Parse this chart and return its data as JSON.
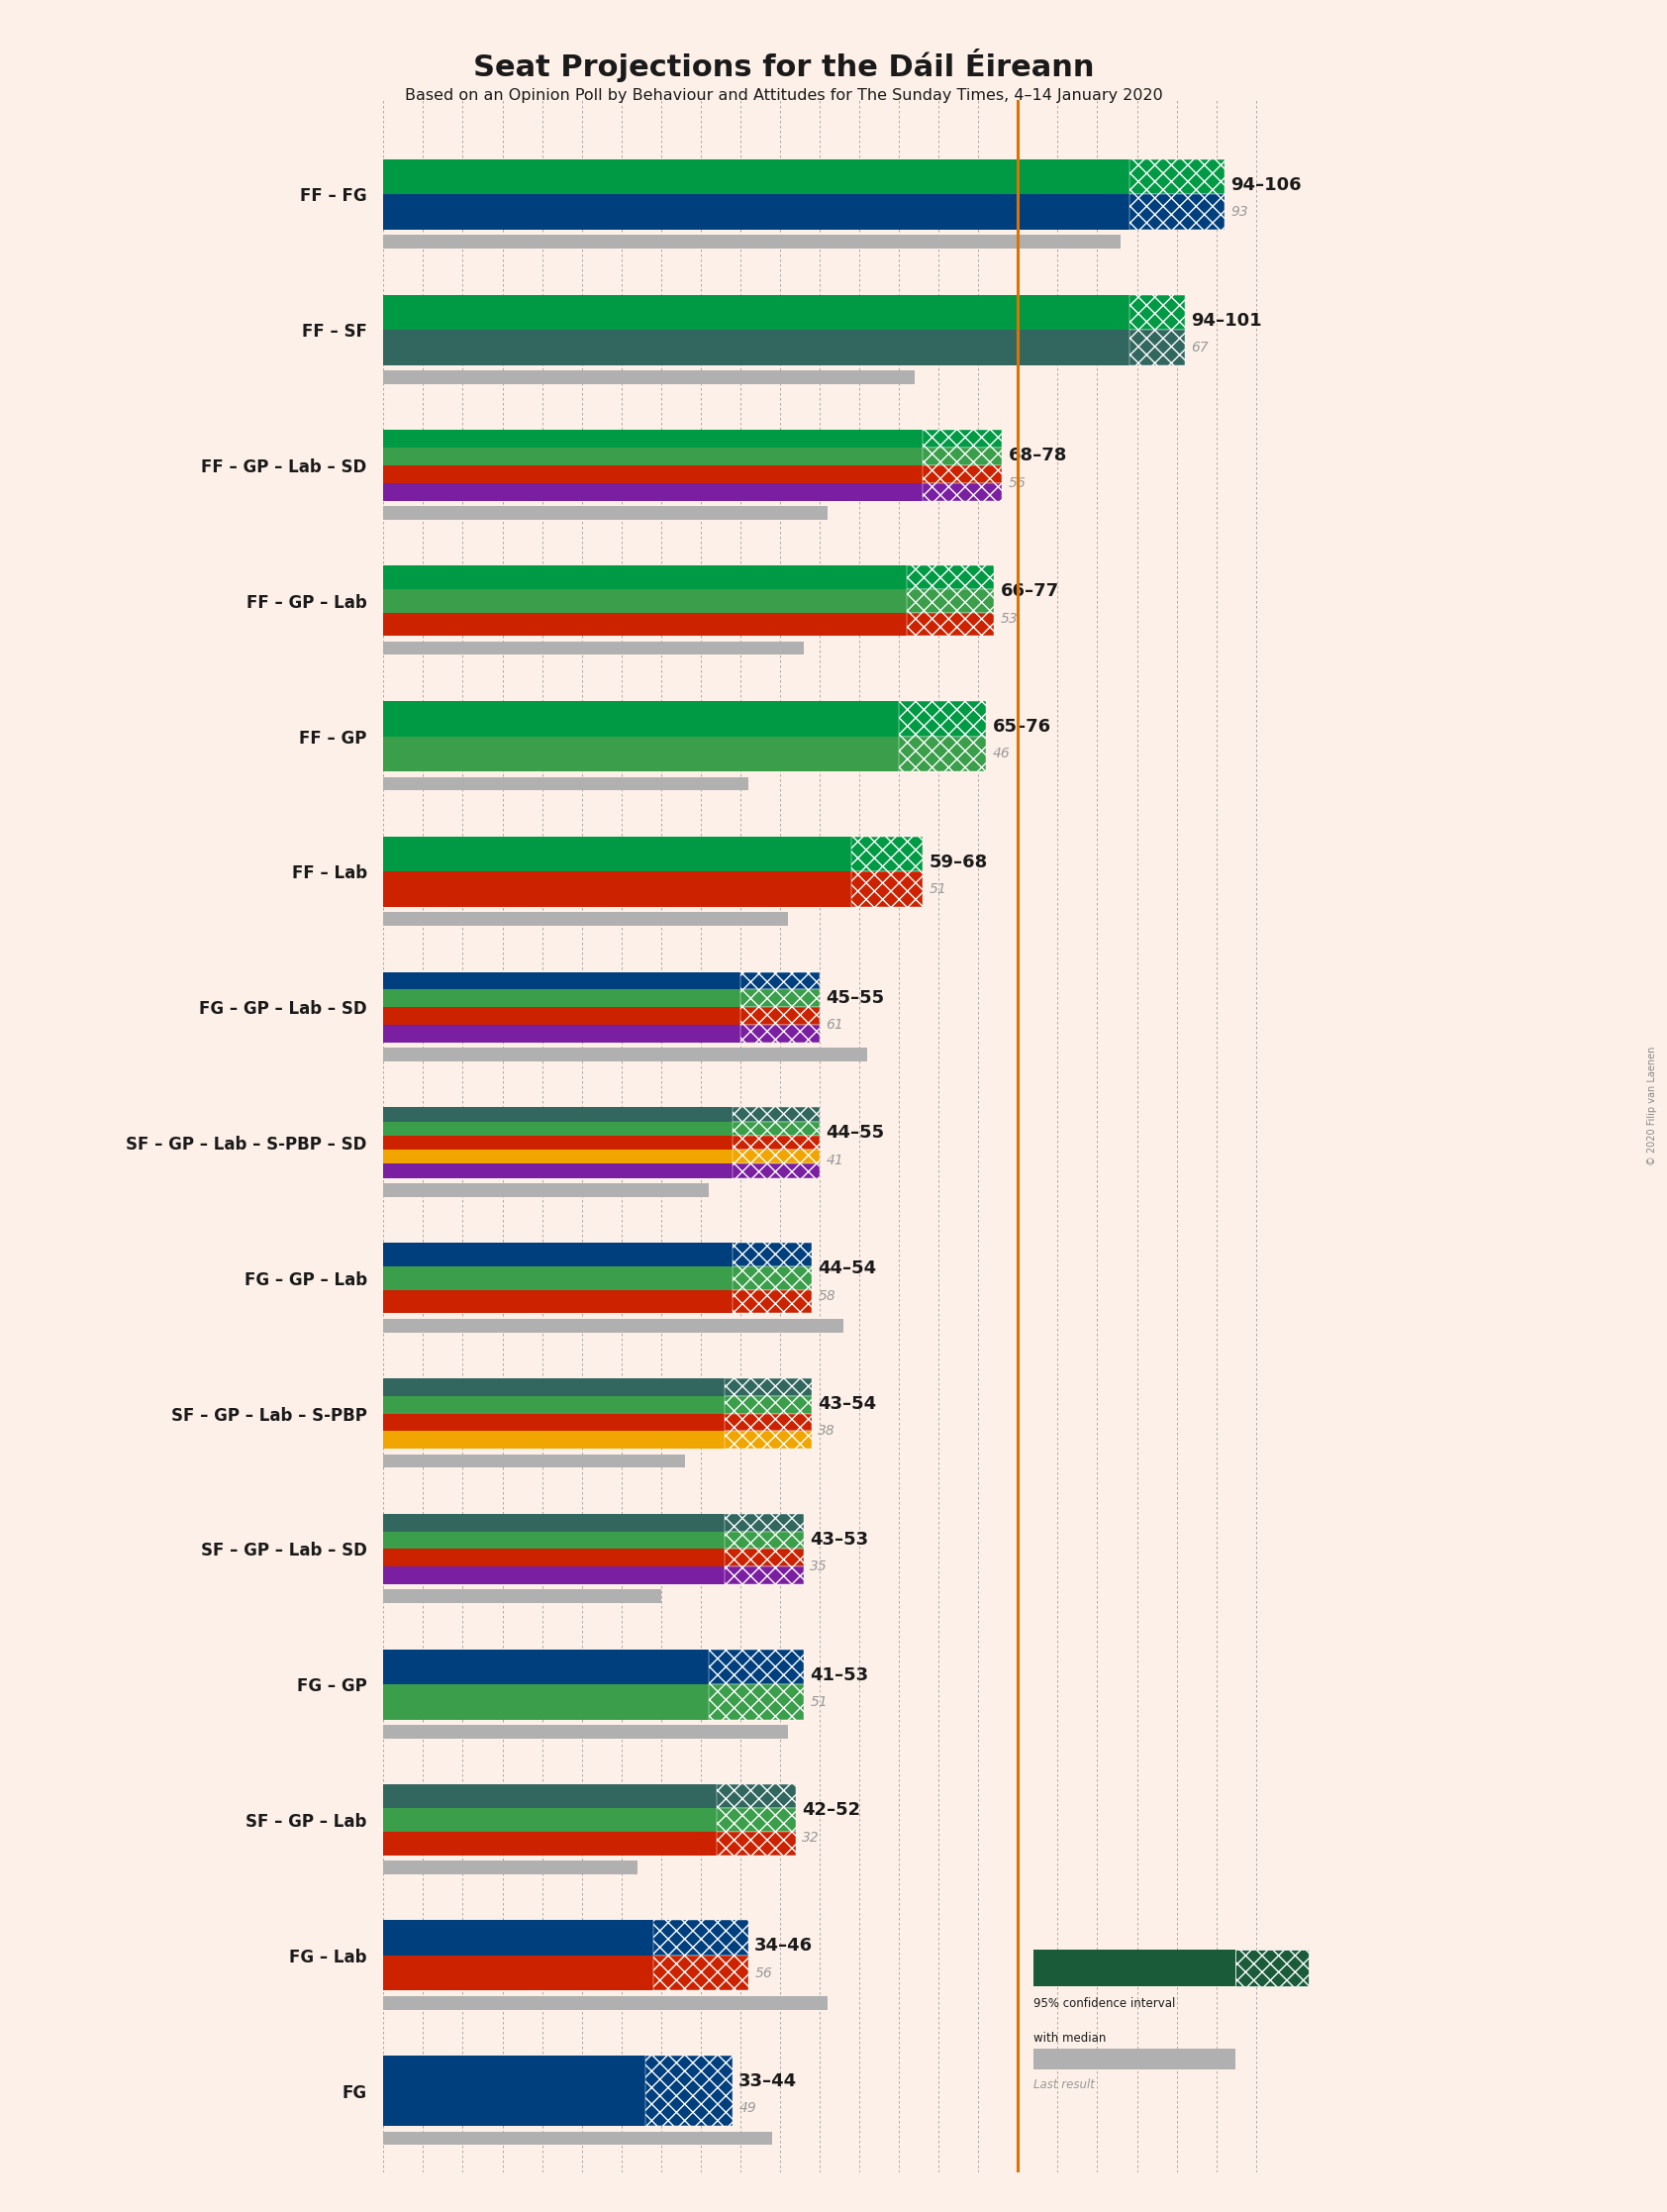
{
  "title": "Seat Projections for the Dáil Éireann",
  "subtitle": "Based on an Opinion Poll by Behaviour and Attitudes for The Sunday Times, 4–14 January 2020",
  "background_color": "#fdf0e8",
  "coalitions": [
    {
      "label": "FF – FG",
      "ci_low": 94,
      "ci_high": 106,
      "median": 100,
      "last": 93,
      "parties": [
        "FF",
        "FG"
      ]
    },
    {
      "label": "FF – SF",
      "ci_low": 94,
      "ci_high": 101,
      "median": 97,
      "last": 67,
      "parties": [
        "FF",
        "SF"
      ]
    },
    {
      "label": "FF – GP – Lab – SD",
      "ci_low": 68,
      "ci_high": 78,
      "median": 73,
      "last": 56,
      "parties": [
        "FF",
        "GP",
        "Lab",
        "SD"
      ]
    },
    {
      "label": "FF – GP – Lab",
      "ci_low": 66,
      "ci_high": 77,
      "median": 71,
      "last": 53,
      "parties": [
        "FF",
        "GP",
        "Lab"
      ]
    },
    {
      "label": "FF – GP",
      "ci_low": 65,
      "ci_high": 76,
      "median": 70,
      "last": 46,
      "parties": [
        "FF",
        "GP"
      ]
    },
    {
      "label": "FF – Lab",
      "ci_low": 59,
      "ci_high": 68,
      "median": 63,
      "last": 51,
      "parties": [
        "FF",
        "Lab"
      ]
    },
    {
      "label": "FG – GP – Lab – SD",
      "ci_low": 45,
      "ci_high": 55,
      "median": 50,
      "last": 61,
      "parties": [
        "FG",
        "GP",
        "Lab",
        "SD"
      ]
    },
    {
      "label": "SF – GP – Lab – S-PBP – SD",
      "ci_low": 44,
      "ci_high": 55,
      "median": 49,
      "last": 41,
      "parties": [
        "SF",
        "GP",
        "Lab",
        "SPBP",
        "SD"
      ]
    },
    {
      "label": "FG – GP – Lab",
      "ci_low": 44,
      "ci_high": 54,
      "median": 49,
      "last": 58,
      "parties": [
        "FG",
        "GP",
        "Lab"
      ]
    },
    {
      "label": "SF – GP – Lab – S-PBP",
      "ci_low": 43,
      "ci_high": 54,
      "median": 48,
      "last": 38,
      "parties": [
        "SF",
        "GP",
        "Lab",
        "SPBP"
      ]
    },
    {
      "label": "SF – GP – Lab – SD",
      "ci_low": 43,
      "ci_high": 53,
      "median": 48,
      "last": 35,
      "parties": [
        "SF",
        "GP",
        "Lab",
        "SD"
      ]
    },
    {
      "label": "FG – GP",
      "ci_low": 41,
      "ci_high": 53,
      "median": 47,
      "last": 51,
      "parties": [
        "FG",
        "GP"
      ]
    },
    {
      "label": "SF – GP – Lab",
      "ci_low": 42,
      "ci_high": 52,
      "median": 47,
      "last": 32,
      "parties": [
        "SF",
        "GP",
        "Lab"
      ]
    },
    {
      "label": "FG – Lab",
      "ci_low": 34,
      "ci_high": 46,
      "median": 40,
      "last": 56,
      "parties": [
        "FG",
        "Lab"
      ]
    },
    {
      "label": "FG",
      "ci_low": 33,
      "ci_high": 44,
      "median": 38,
      "last": 49,
      "parties": [
        "FG"
      ]
    }
  ],
  "party_colors": {
    "FF": "#009a44",
    "FG": "#003f7d",
    "SF": "#326760",
    "GP": "#3a9e4a",
    "Lab": "#cc2200",
    "SD": "#7b1fa2",
    "SPBP": "#f0a500"
  },
  "majority_line": 80,
  "xmax": 110,
  "xmin": 0,
  "majority_color": "#e07000",
  "last_result_color": "#b0b0b0",
  "copyright_text": "© 2020 Filip van Laenen"
}
